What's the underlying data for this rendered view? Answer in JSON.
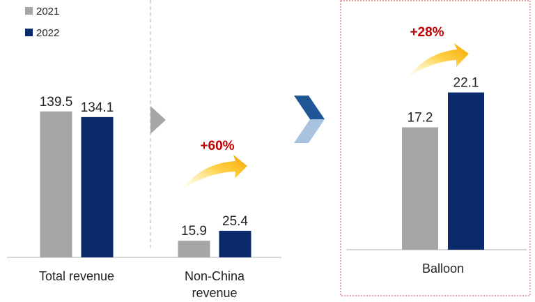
{
  "colors": {
    "series_2021": "#a6a6a6",
    "series_2022": "#0b2a6b",
    "growth_text": "#c00000",
    "arrow_orange": "#f7b500",
    "chevron_dark": "#1f5796",
    "chevron_light": "#a9c3df",
    "divider": "#bfbfbf",
    "box_border": "#e06666"
  },
  "legend": [
    "2021",
    "2022"
  ],
  "chart_data": [
    {
      "type": "bar",
      "categories": [
        "Total revenue",
        "Non-China revenue"
      ],
      "category_lines": [
        [
          "Total revenue"
        ],
        [
          "Non-China",
          "revenue"
        ]
      ],
      "series": [
        {
          "name": "2021",
          "values": [
            139.5,
            15.9
          ]
        },
        {
          "name": "2022",
          "values": [
            134.1,
            25.4
          ]
        }
      ],
      "value_labels": [
        [
          "139.5",
          "134.1"
        ],
        [
          "15.9",
          "25.4"
        ]
      ],
      "annotations": [
        {
          "category": "Non-China revenue",
          "text": "+60%"
        }
      ]
    },
    {
      "type": "bar",
      "categories": [
        "Balloon"
      ],
      "category_lines": [
        [
          "Balloon"
        ]
      ],
      "series": [
        {
          "name": "2021",
          "values": [
            17.2
          ]
        },
        {
          "name": "2022",
          "values": [
            22.1
          ]
        }
      ],
      "value_labels": [
        [
          "17.2",
          "22.1"
        ]
      ],
      "annotations": [
        {
          "category": "Balloon",
          "text": "+28%"
        }
      ]
    }
  ]
}
